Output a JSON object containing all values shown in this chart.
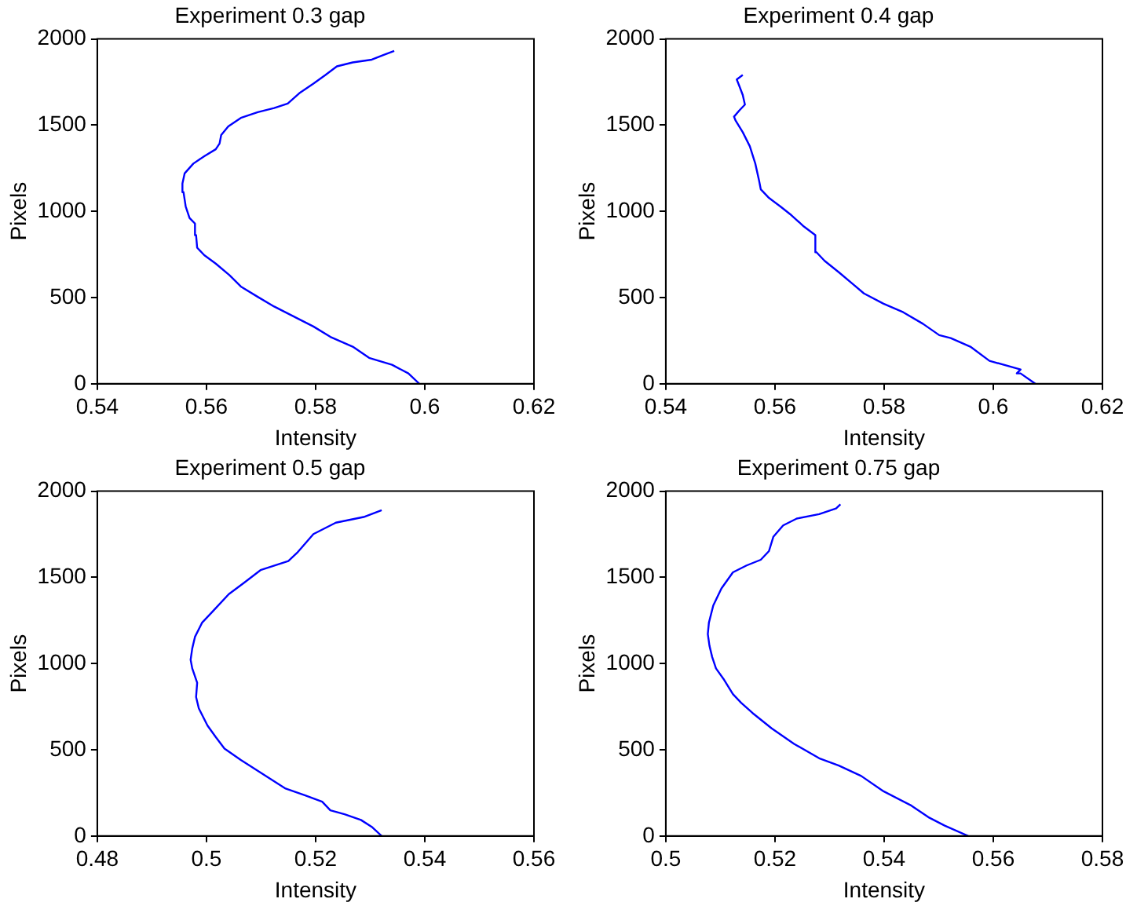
{
  "chart_data": [
    {
      "type": "line",
      "title": "Experiment 0.3 gap",
      "xlabel": "Intensity",
      "ylabel": "Pixels",
      "xlim": [
        0.54,
        0.62
      ],
      "xticks": [
        0.54,
        0.56,
        0.58,
        0.6,
        0.62
      ],
      "ylim": [
        0,
        2000
      ],
      "yticks": [
        0,
        500,
        1000,
        1500,
        2000
      ],
      "grid": false,
      "series": [
        {
          "color": "#0000ff",
          "x": [
            0.599,
            0.597,
            0.594,
            0.5898,
            0.5868,
            0.5827,
            0.5796,
            0.5755,
            0.5724,
            0.5694,
            0.5663,
            0.5642,
            0.5617,
            0.5596,
            0.5583,
            0.5581,
            0.5579,
            0.5569,
            0.5562,
            0.5558,
            0.5556,
            0.556,
            0.5576,
            0.5596,
            0.5617,
            0.5624,
            0.5627,
            0.564,
            0.5663,
            0.5694,
            0.5724,
            0.5749,
            0.577,
            0.5796,
            0.5818,
            0.5839,
            0.5868,
            0.5903,
            0.5924,
            0.5944
          ],
          "values": [
            0,
            60,
            110,
            150,
            215,
            272,
            332,
            398,
            448,
            504,
            564,
            630,
            697,
            746,
            789,
            862,
            929,
            962,
            1028,
            1111,
            1161,
            1220,
            1277,
            1320,
            1360,
            1393,
            1443,
            1493,
            1542,
            1575,
            1599,
            1625,
            1685,
            1741,
            1791,
            1841,
            1864,
            1880,
            1907,
            1930
          ]
        }
      ]
    },
    {
      "type": "line",
      "title": "Experiment 0.4 gap",
      "xlabel": "Intensity",
      "ylabel": "Pixels",
      "xlim": [
        0.54,
        0.62
      ],
      "xticks": [
        0.54,
        0.56,
        0.58,
        0.6,
        0.62
      ],
      "ylim": [
        0,
        2000
      ],
      "yticks": [
        0,
        500,
        1000,
        1500,
        2000
      ],
      "grid": false,
      "series": [
        {
          "color": "#0000ff",
          "x": [
            0.6077,
            0.605,
            0.6043,
            0.605,
            0.5993,
            0.5958,
            0.5922,
            0.5901,
            0.5871,
            0.5835,
            0.5799,
            0.5763,
            0.5742,
            0.5717,
            0.5691,
            0.5676,
            0.5674,
            0.5653,
            0.563,
            0.561,
            0.5589,
            0.5574,
            0.5571,
            0.5564,
            0.5554,
            0.5541,
            0.5528,
            0.5525,
            0.5535,
            0.5545,
            0.5541,
            0.5535,
            0.553,
            0.5541
          ],
          "values": [
            0,
            60,
            60,
            83,
            133,
            215,
            265,
            282,
            348,
            415,
            464,
            524,
            580,
            647,
            713,
            763,
            862,
            912,
            978,
            1028,
            1078,
            1128,
            1177,
            1277,
            1377,
            1459,
            1526,
            1549,
            1586,
            1619,
            1675,
            1725,
            1765,
            1791
          ]
        }
      ]
    },
    {
      "type": "line",
      "title": "Experiment 0.5 gap",
      "xlabel": "Intensity",
      "ylabel": "Pixels",
      "xlim": [
        0.48,
        0.56
      ],
      "xticks": [
        0.48,
        0.5,
        0.52,
        0.54,
        0.56
      ],
      "ylim": [
        0,
        2000
      ],
      "yticks": [
        0,
        500,
        1000,
        1500,
        2000
      ],
      "grid": false,
      "series": [
        {
          "color": "#0000ff",
          "x": [
            0.5321,
            0.5304,
            0.5283,
            0.5253,
            0.5227,
            0.5212,
            0.5181,
            0.5145,
            0.5104,
            0.5063,
            0.5033,
            0.5017,
            0.5002,
            0.4986,
            0.4981,
            0.4983,
            0.4974,
            0.4971,
            0.4974,
            0.4979,
            0.4992,
            0.5012,
            0.5041,
            0.5069,
            0.5099,
            0.515,
            0.5166,
            0.5196,
            0.5237,
            0.5288,
            0.5321
          ],
          "values": [
            0,
            50,
            93,
            126,
            149,
            199,
            235,
            275,
            358,
            441,
            507,
            574,
            640,
            740,
            806,
            889,
            972,
            1022,
            1088,
            1155,
            1237,
            1304,
            1403,
            1469,
            1542,
            1595,
            1642,
            1751,
            1817,
            1850,
            1890
          ]
        }
      ]
    },
    {
      "type": "line",
      "title": "Experiment 0.75 gap",
      "xlabel": "Intensity",
      "ylabel": "Pixels",
      "xlim": [
        0.5,
        0.58
      ],
      "xticks": [
        0.5,
        0.52,
        0.54,
        0.56,
        0.58
      ],
      "ylim": [
        0,
        2000
      ],
      "yticks": [
        0,
        500,
        1000,
        1500,
        2000
      ],
      "grid": false,
      "series": [
        {
          "color": "#0000ff",
          "x": [
            0.5554,
            0.5511,
            0.5481,
            0.545,
            0.5399,
            0.5358,
            0.5317,
            0.5281,
            0.5235,
            0.5194,
            0.5159,
            0.5138,
            0.5123,
            0.5107,
            0.5092,
            0.5085,
            0.508,
            0.5077,
            0.5079,
            0.5087,
            0.5102,
            0.5123,
            0.5148,
            0.5174,
            0.5189,
            0.5197,
            0.5215,
            0.524,
            0.5281,
            0.5312,
            0.532
          ],
          "values": [
            0,
            60,
            109,
            176,
            259,
            348,
            408,
            451,
            534,
            624,
            713,
            773,
            823,
            905,
            972,
            1038,
            1104,
            1171,
            1237,
            1337,
            1436,
            1529,
            1569,
            1602,
            1652,
            1735,
            1801,
            1841,
            1867,
            1900,
            1924
          ]
        }
      ]
    }
  ]
}
